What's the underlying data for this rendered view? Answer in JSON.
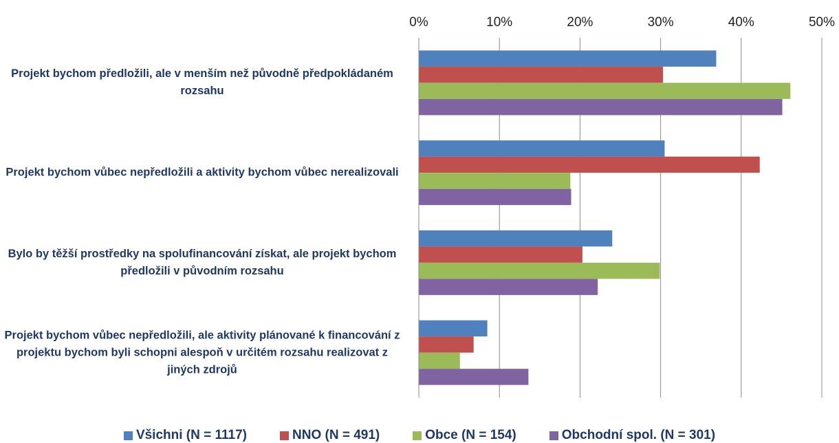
{
  "chart_data": {
    "type": "barh",
    "categories": [
      "Projekt bychom předložili, ale v menším než původně předpokládaném rozsahu",
      "Projekt bychom vůbec nepředložili a aktivity bychom vůbec nerealizovali",
      "Bylo by těžší prostředky na spolufinancování získat, ale projekt bychom předložili v původním rozsahu",
      "Projekt bychom vůbec nepředložili, ale aktivity plánované k financování z projektu bychom byli schopni alespoň v určitém rozsahu realizovat z jiných zdrojů"
    ],
    "series": [
      {
        "name": "Všichni (N = 1117)",
        "color": "#4f81bd",
        "values": [
          36.9,
          30.5,
          24.0,
          8.5
        ]
      },
      {
        "name": "NNO (N = 491)",
        "color": "#c0504d",
        "values": [
          30.3,
          42.3,
          20.3,
          6.8
        ]
      },
      {
        "name": "Obce (N = 154)",
        "color": "#9bbb59",
        "values": [
          46.1,
          18.8,
          29.9,
          5.1
        ]
      },
      {
        "name": "Obchodní spol. (N = 301)",
        "color": "#8064a2",
        "values": [
          45.1,
          18.9,
          22.2,
          13.6
        ]
      }
    ],
    "xlim": [
      0,
      50
    ],
    "xticks": [
      {
        "value": 0,
        "label": "0%"
      },
      {
        "value": 10,
        "label": "10%"
      },
      {
        "value": 20,
        "label": "20%"
      },
      {
        "value": 30,
        "label": "30%"
      },
      {
        "value": 40,
        "label": "40%"
      },
      {
        "value": 50,
        "label": "50%"
      }
    ],
    "grid": true,
    "legend": "bottom"
  }
}
